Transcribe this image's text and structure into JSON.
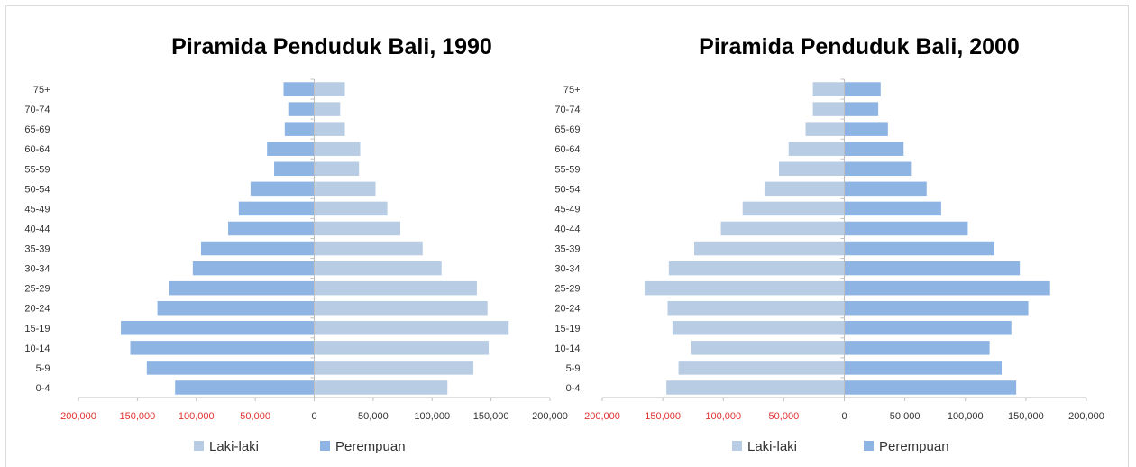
{
  "colors": {
    "laki_laki": "#b8cce4",
    "perempuan": "#8eb4e3",
    "negative_tick": "#e03030",
    "axis": "#bfbfbf",
    "text": "#000000"
  },
  "chart_data": [
    {
      "type": "bar",
      "orientation": "horizontal",
      "title": "Piramida Penduduk Bali, 1990",
      "categories": [
        "0-4",
        "5-9",
        "10-14",
        "15-19",
        "20-24",
        "25-29",
        "30-34",
        "35-39",
        "40-44",
        "45-49",
        "50-54",
        "55-59",
        "60-64",
        "65-69",
        "70-74",
        "75+"
      ],
      "xlim": [
        -200000,
        200000
      ],
      "x_ticks": [
        "200,000",
        "150,000",
        "100,000",
        "50,000",
        "0",
        "50,000",
        "100,000",
        "150,000",
        "200,000"
      ],
      "legend_position": "bottom",
      "series": [
        {
          "name": "Laki-laki",
          "side": "right",
          "color_key": "laki_laki",
          "values": [
            113000,
            135000,
            148000,
            165000,
            147000,
            138000,
            108000,
            92000,
            73000,
            62000,
            52000,
            38000,
            39000,
            26000,
            22000,
            26000
          ]
        },
        {
          "name": "Perempuan",
          "side": "left",
          "color_key": "perempuan",
          "values": [
            118000,
            142000,
            156000,
            164000,
            133000,
            123000,
            103000,
            96000,
            73000,
            64000,
            54000,
            34000,
            40000,
            25000,
            22000,
            26000
          ]
        }
      ]
    },
    {
      "type": "bar",
      "orientation": "horizontal",
      "title": "Piramida Penduduk Bali, 2000",
      "categories": [
        "0-4",
        "5-9",
        "10-14",
        "15-19",
        "20-24",
        "25-29",
        "30-34",
        "35-39",
        "40-44",
        "45-49",
        "50-54",
        "55-59",
        "60-64",
        "65-69",
        "70-74",
        "75+"
      ],
      "xlim": [
        -200000,
        200000
      ],
      "x_ticks": [
        "200,000",
        "150,000",
        "100,000",
        "50,000",
        "0",
        "50,000",
        "100,000",
        "150,000",
        "200,000"
      ],
      "legend_position": "bottom",
      "series": [
        {
          "name": "Laki-laki",
          "side": "left",
          "color_key": "laki_laki",
          "values": [
            147000,
            137000,
            127000,
            142000,
            146000,
            165000,
            145000,
            124000,
            102000,
            84000,
            66000,
            54000,
            46000,
            32000,
            26000,
            26000
          ]
        },
        {
          "name": "Perempuan",
          "side": "right",
          "color_key": "perempuan",
          "values": [
            142000,
            130000,
            120000,
            138000,
            152000,
            170000,
            145000,
            124000,
            102000,
            80000,
            68000,
            55000,
            49000,
            36000,
            28000,
            30000
          ]
        }
      ]
    }
  ]
}
